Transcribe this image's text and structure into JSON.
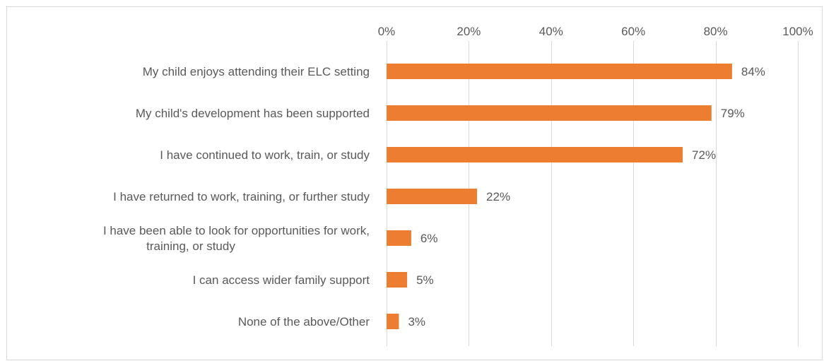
{
  "chart_data": {
    "type": "bar",
    "orientation": "horizontal",
    "title": "",
    "xlabel": "",
    "ylabel": "",
    "xlim": [
      0,
      100
    ],
    "x_ticks": [
      "0%",
      "20%",
      "40%",
      "60%",
      "80%",
      "100%"
    ],
    "x_tick_values": [
      0,
      20,
      40,
      60,
      80,
      100
    ],
    "x_axis_position": "top",
    "grid": true,
    "legend": "none",
    "bar_color": "#ED7D31",
    "categories": [
      [
        "My child enjoys attending their ELC setting"
      ],
      [
        "My child's development has been supported"
      ],
      [
        "I have continued to work, train, or study"
      ],
      [
        "I have returned to work, training, or further study"
      ],
      [
        "I have been able to look for opportunities for work,",
        "training, or study"
      ],
      [
        "I can access wider family support"
      ],
      [
        "None of the above/Other"
      ]
    ],
    "values": [
      84,
      79,
      72,
      22,
      6,
      5,
      3
    ],
    "data_labels": [
      "84%",
      "79%",
      "72%",
      "22%",
      "6%",
      "5%",
      "3%"
    ]
  }
}
